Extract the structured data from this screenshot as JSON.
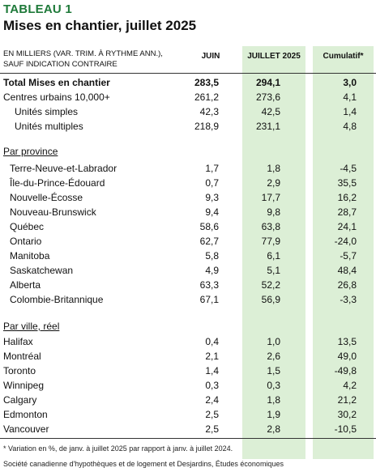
{
  "header": {
    "tableau": "TABLEAU 1",
    "title": "Mises en chantier, juillet 2025",
    "units_line1": "EN MILLIERS (VAR. TRIM. À RYTHME ANN.),",
    "units_line2": "SAUF INDICATION CONTRAIRE",
    "col_juin": "JUIN",
    "col_juillet": "JUILLET 2025",
    "col_cumul": "Cumulatif*"
  },
  "colors": {
    "accent": "#1f7a3a",
    "highlight": "#dcefd6"
  },
  "totals": [
    {
      "label": "Total Mises en chantier",
      "juin": "283,5",
      "juillet": "294,1",
      "cumul": "3,0"
    },
    {
      "label": "Centres urbains 10,000+",
      "juin": "261,2",
      "juillet": "273,6",
      "cumul": "4,1"
    },
    {
      "label": "Unités simples",
      "juin": "42,3",
      "juillet": "42,5",
      "cumul": "1,4"
    },
    {
      "label": "Unités multiples",
      "juin": "218,9",
      "juillet": "231,1",
      "cumul": "4,8"
    }
  ],
  "province_title": "Par province",
  "provinces": [
    {
      "label": "Terre-Neuve-et-Labrador",
      "juin": "1,7",
      "juillet": "1,8",
      "cumul": "-4,5"
    },
    {
      "label": "Île-du-Prince-Édouard",
      "juin": "0,7",
      "juillet": "2,9",
      "cumul": "35,5"
    },
    {
      "label": "Nouvelle-Écosse",
      "juin": "9,3",
      "juillet": "17,7",
      "cumul": "16,2"
    },
    {
      "label": "Nouveau-Brunswick",
      "juin": "9,4",
      "juillet": "9,8",
      "cumul": "28,7"
    },
    {
      "label": "Québec",
      "juin": "58,6",
      "juillet": "63,8",
      "cumul": "24,1"
    },
    {
      "label": "Ontario",
      "juin": "62,7",
      "juillet": "77,9",
      "cumul": "-24,0"
    },
    {
      "label": "Manitoba",
      "juin": "5,8",
      "juillet": "6,1",
      "cumul": "-5,7"
    },
    {
      "label": "Saskatchewan",
      "juin": "4,9",
      "juillet": "5,1",
      "cumul": "48,4"
    },
    {
      "label": "Alberta",
      "juin": "63,3",
      "juillet": "52,2",
      "cumul": "26,8"
    },
    {
      "label": "Colombie-Britannique",
      "juin": "67,1",
      "juillet": "56,9",
      "cumul": "-3,3"
    }
  ],
  "city_title": "Par ville, réel",
  "cities": [
    {
      "label": "Halifax",
      "juin": "0,4",
      "juillet": "1,0",
      "cumul": "13,5"
    },
    {
      "label": "Montréal",
      "juin": "2,1",
      "juillet": "2,6",
      "cumul": "49,0"
    },
    {
      "label": "Toronto",
      "juin": "1,4",
      "juillet": "1,5",
      "cumul": "-49,8"
    },
    {
      "label": "Winnipeg",
      "juin": "0,3",
      "juillet": "0,3",
      "cumul": "4,2"
    },
    {
      "label": "Calgary",
      "juin": "2,4",
      "juillet": "1,8",
      "cumul": "21,2"
    },
    {
      "label": "Edmonton",
      "juin": "2,5",
      "juillet": "1,9",
      "cumul": "30,2"
    },
    {
      "label": "Vancouver",
      "juin": "2,5",
      "juillet": "2,8",
      "cumul": "-10,5"
    }
  ],
  "footnote": "* Variation en %, de janv. à juillet 2025 par rapport à janv. à juillet 2024.",
  "source": "Société canadienne d'hypothèques et de logement et Desjardins, Études économiques"
}
